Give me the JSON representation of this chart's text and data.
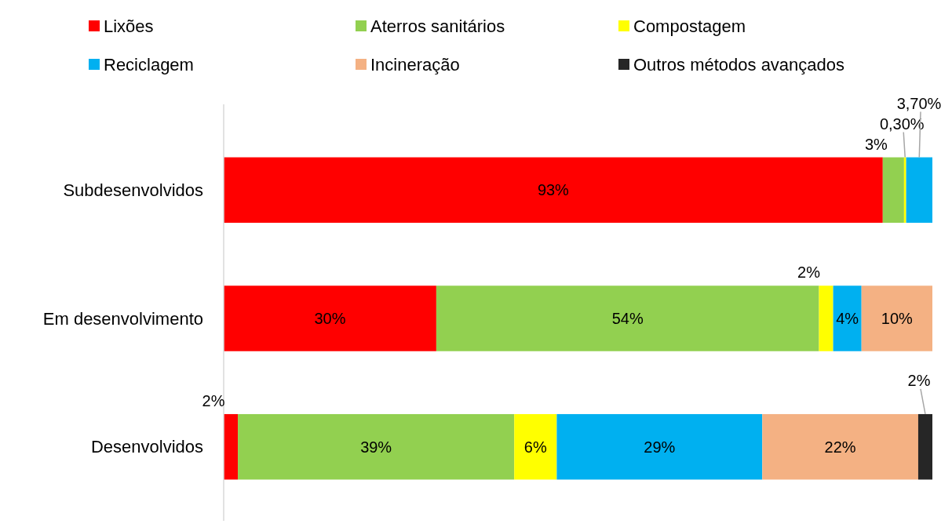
{
  "chart_data": {
    "type": "bar",
    "orientation": "horizontal",
    "stacked": true,
    "legend": "top",
    "xlim": [
      0,
      100
    ],
    "categories": [
      "Subdesenvolvidos",
      "Em desenvolvimento",
      "Desenvolvidos"
    ],
    "series": [
      {
        "name": "Lixões",
        "color": "#ff0000",
        "values": [
          93,
          30,
          2
        ],
        "value_labels": [
          "93%",
          "30%",
          "2%"
        ]
      },
      {
        "name": "Aterros sanitários",
        "color": "#92d050",
        "values": [
          3,
          54,
          39
        ],
        "value_labels": [
          "3%",
          "54%",
          "39%"
        ]
      },
      {
        "name": "Compostagem",
        "color": "#ffff00",
        "values": [
          0.3,
          2,
          6
        ],
        "value_labels": [
          "0,30%",
          "2%",
          "6%"
        ]
      },
      {
        "name": "Reciclagem",
        "color": "#00b0f0",
        "values": [
          3.7,
          4,
          29
        ],
        "value_labels": [
          "3,70%",
          "4%",
          "29%"
        ]
      },
      {
        "name": "Incineração",
        "color": "#f4b183",
        "values": [
          null,
          10,
          22
        ],
        "value_labels": [
          null,
          "10%",
          "22%"
        ]
      },
      {
        "name": "Outros métodos avançados",
        "color": "#262626",
        "values": [
          null,
          null,
          2
        ],
        "value_labels": [
          null,
          null,
          "2%"
        ]
      }
    ]
  }
}
